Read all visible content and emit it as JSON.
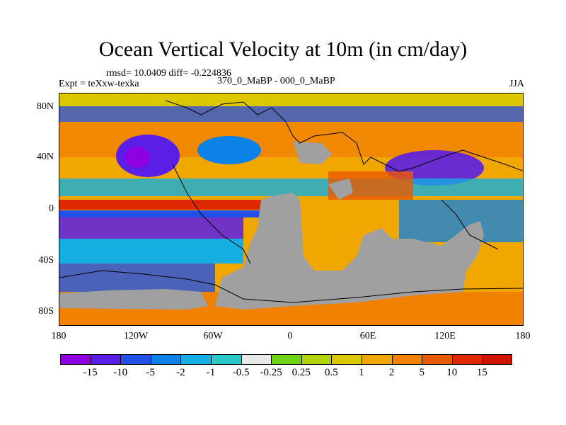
{
  "title": "Ocean Vertical Velocity at 10m (in cm/day)",
  "stats_line": "rmsd= 10.0409 diff= -0.224836",
  "expt_line": "Expt = teXxw-texka",
  "comparison": "370_0_MaBP - 000_0_MaBP",
  "season": "JJA",
  "y_axis_labels": [
    "80N",
    "40N",
    "0",
    "40S",
    "80S"
  ],
  "x_axis_labels": [
    "180",
    "120W",
    "60W",
    "0",
    "60E",
    "120E",
    "180"
  ],
  "colorbar": {
    "colors": [
      "#8f00e0",
      "#5a1ee6",
      "#2050e6",
      "#0a82e8",
      "#14aee0",
      "#28c8c8",
      "#e8e8e8",
      "#6cd414",
      "#b4d40a",
      "#dcc800",
      "#f0a800",
      "#f08200",
      "#e85a00",
      "#e02800",
      "#d01400"
    ],
    "labels": [
      "-15",
      "-10",
      "-5",
      "-2",
      "-1",
      "-0.5",
      "-0.25",
      "0.25",
      "0.5",
      "1",
      "2",
      "5",
      "10",
      "15"
    ]
  },
  "legend_colors": {
    "land": "#a0a0a0",
    "coast": "#000000"
  }
}
